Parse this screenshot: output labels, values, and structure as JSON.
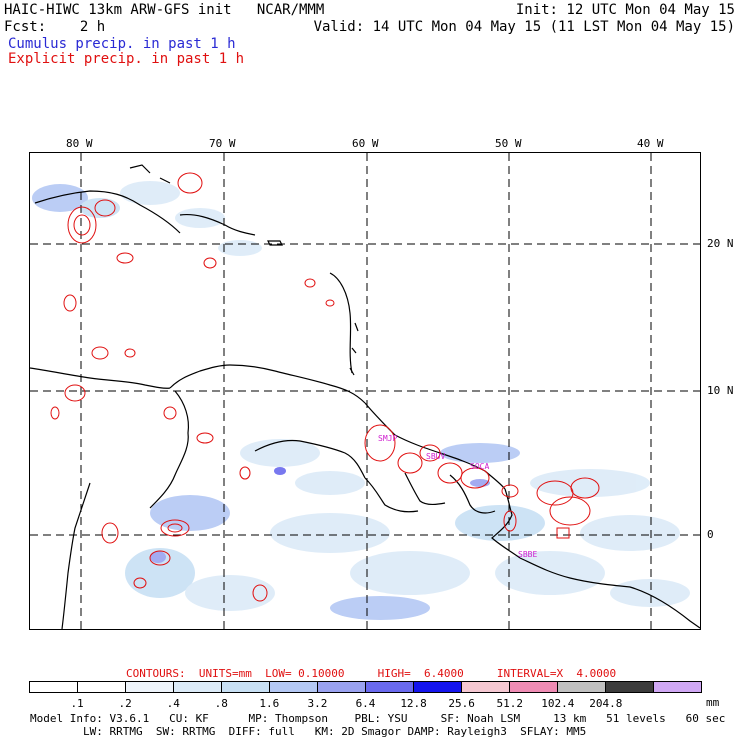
{
  "header": {
    "line1_left": "HAIC-HIWC 13km ARW-GFS init   NCAR/MMM",
    "line1_right": "Init: 12 UTC Mon 04 May 15",
    "line2_left": "Fcst:    2 h",
    "line2_right": "Valid: 14 UTC Mon 04 May 15 (11 LST Mon 04 May 15)",
    "cumulus": "Cumulus precip. in past 1 h",
    "explicit": "Explicit precip. in past 1 h"
  },
  "map": {
    "lon_labels": [
      "80 W",
      "70 W",
      "60 W",
      "50 W",
      "40 W"
    ],
    "lat_labels": [
      "20 N",
      "10 N",
      "0"
    ],
    "place_labels": [
      "SMJP",
      "SOCA",
      "SBBE",
      "SBUV"
    ]
  },
  "contours_line": "CONTOURS:  UNITS=mm  LOW= 0.10000     HIGH=  6.4000     INTERVAL=X  4.0000",
  "legend": {
    "values": [
      ".1",
      ".2",
      ".4",
      ".8",
      "1.6",
      "3.2",
      "6.4",
      "12.8",
      "25.6",
      "51.2",
      "102.4",
      "204.8"
    ],
    "unit": "mm",
    "colors": [
      "#ffffff",
      "#ffffff",
      "#eef4fb",
      "#dcebf8",
      "#c8e0f4",
      "#b4c8f4",
      "#9aa2f0",
      "#6a6aee",
      "#1414ee",
      "#f5c8d2",
      "#ef8cb4",
      "#c0c0c0",
      "#3c3c3c",
      "#d0a8f4"
    ]
  },
  "footer": {
    "line1": "Model Info: V3.6.1   CU: KF      MP: Thompson    PBL: YSU     SF: Noah LSM     13 km   51 levels   60 sec",
    "line2": "        LW: RRTMG  SW: RRTMG  DIFF: full   KM: 2D Smagor DAMP: Rayleigh3  SFLAY: MM5"
  },
  "colors": {
    "explicit_contour": "#e01010",
    "cumulus_text": "#2a2ad4",
    "coast": "#000000",
    "station_label": "#d020d0"
  }
}
